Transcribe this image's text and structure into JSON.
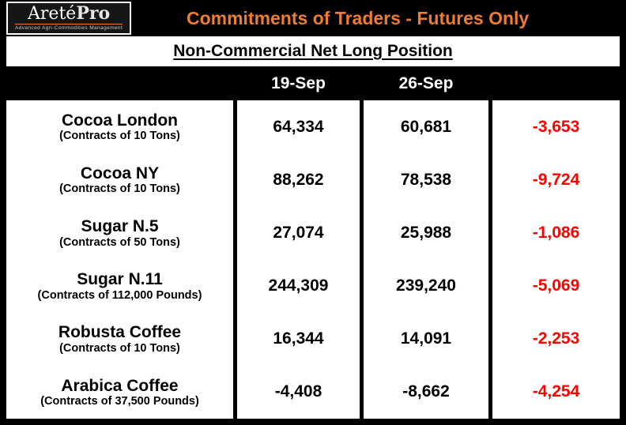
{
  "header": {
    "logo": {
      "brand": "Areté",
      "brand_suffix": "Pro",
      "tagline": "Advanced Agri-Commodities Management"
    },
    "title": "Commitments of Traders - Futures Only"
  },
  "subtitle": "Non-Commercial Net Long Position",
  "colors": {
    "accent_orange": "#ED7D31",
    "negative_red": "#FF0000",
    "header_bg": "#000000"
  },
  "chart_data": {
    "type": "table",
    "title": "Commitments of Traders - Futures Only",
    "subtitle": "Non-Commercial Net Long Position",
    "date_columns": [
      "19-Sep",
      "26-Sep"
    ],
    "rows": [
      {
        "name": "Cocoa London",
        "contract": "(Contracts of 10 Tons)",
        "sep19": "64,334",
        "sep26": "60,681",
        "change": "-3,653"
      },
      {
        "name": "Cocoa NY",
        "contract": "(Contracts of 10 Tons)",
        "sep19": "88,262",
        "sep26": "78,538",
        "change": "-9,724"
      },
      {
        "name": "Sugar N.5",
        "contract": "(Contracts of 50 Tons)",
        "sep19": "27,074",
        "sep26": "25,988",
        "change": "-1,086"
      },
      {
        "name": "Sugar N.11",
        "contract": "(Contracts of 112,000 Pounds)",
        "sep19": "244,309",
        "sep26": "239,240",
        "change": "-5,069"
      },
      {
        "name": "Robusta Coffee",
        "contract": "(Contracts of 10 Tons)",
        "sep19": "16,344",
        "sep26": "14,091",
        "change": "-2,253"
      },
      {
        "name": "Arabica Coffee",
        "contract": "(Contracts of 37,500 Pounds)",
        "sep19": "-4,408",
        "sep26": "-8,662",
        "change": "-4,254"
      }
    ]
  }
}
